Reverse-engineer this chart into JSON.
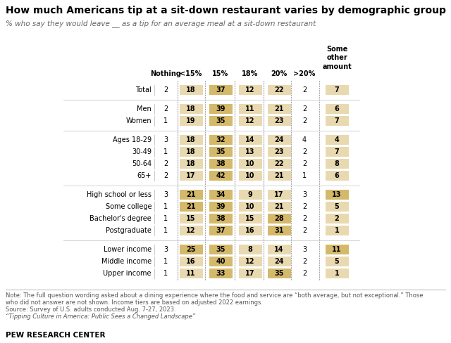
{
  "title": "How much Americans tip at a sit-down restaurant varies by demographic group",
  "subtitle": "% who say they would leave __ as a tip for an average meal at a sit-down restaurant",
  "col_headers": [
    "Nothing",
    "<15%",
    "15%",
    "18%",
    "20%",
    ">20%",
    "Some\nother\namount"
  ],
  "rows": [
    {
      "label": "Total",
      "group": "total",
      "values": [
        2,
        18,
        37,
        12,
        22,
        2,
        7
      ]
    },
    {
      "label": "Men",
      "group": "gender",
      "values": [
        2,
        18,
        39,
        11,
        21,
        2,
        6
      ]
    },
    {
      "label": "Women",
      "group": "gender",
      "values": [
        1,
        19,
        35,
        12,
        23,
        2,
        7
      ]
    },
    {
      "label": "Ages 18-29",
      "group": "age",
      "values": [
        3,
        18,
        32,
        14,
        24,
        4,
        4
      ]
    },
    {
      "label": "30-49",
      "group": "age",
      "values": [
        1,
        18,
        35,
        13,
        23,
        2,
        7
      ]
    },
    {
      "label": "50-64",
      "group": "age",
      "values": [
        2,
        18,
        38,
        10,
        22,
        2,
        8
      ]
    },
    {
      "label": "65+",
      "group": "age",
      "values": [
        2,
        17,
        42,
        10,
        21,
        1,
        6
      ]
    },
    {
      "label": "High school or less",
      "group": "education",
      "values": [
        3,
        21,
        34,
        9,
        17,
        3,
        13
      ]
    },
    {
      "label": "Some college",
      "group": "education",
      "values": [
        1,
        21,
        39,
        10,
        21,
        2,
        5
      ]
    },
    {
      "label": "Bachelor's degree",
      "group": "education",
      "values": [
        1,
        15,
        38,
        15,
        28,
        2,
        2
      ]
    },
    {
      "label": "Postgraduate",
      "group": "education",
      "values": [
        1,
        12,
        37,
        16,
        31,
        2,
        1
      ]
    },
    {
      "label": "Lower income",
      "group": "income",
      "values": [
        3,
        25,
        35,
        8,
        14,
        3,
        11
      ]
    },
    {
      "label": "Middle income",
      "group": "income",
      "values": [
        1,
        16,
        40,
        12,
        24,
        2,
        5
      ]
    },
    {
      "label": "Upper income",
      "group": "income",
      "values": [
        1,
        11,
        33,
        17,
        35,
        2,
        1
      ]
    }
  ],
  "tan_light": "#e8d9b0",
  "tan_dark": "#d4b96a",
  "note1": "Note: The full question wording asked about a dining experience where the food and service are “both average, but not exceptional.” Those",
  "note2": "who did not answer are not shown. Income tiers are based on adjusted 2022 earnings.",
  "source": "Source: Survey of U.S. adults conducted Aug. 7-27, 2023.",
  "citation": "“Tipping Culture in America: Public Sees a Changed Landscape”",
  "logo": "PEW RESEARCH CENTER",
  "bg_color": "#ffffff",
  "text_color": "#000000",
  "gray_text": "#555555",
  "dot_color": "#aaaaaa"
}
